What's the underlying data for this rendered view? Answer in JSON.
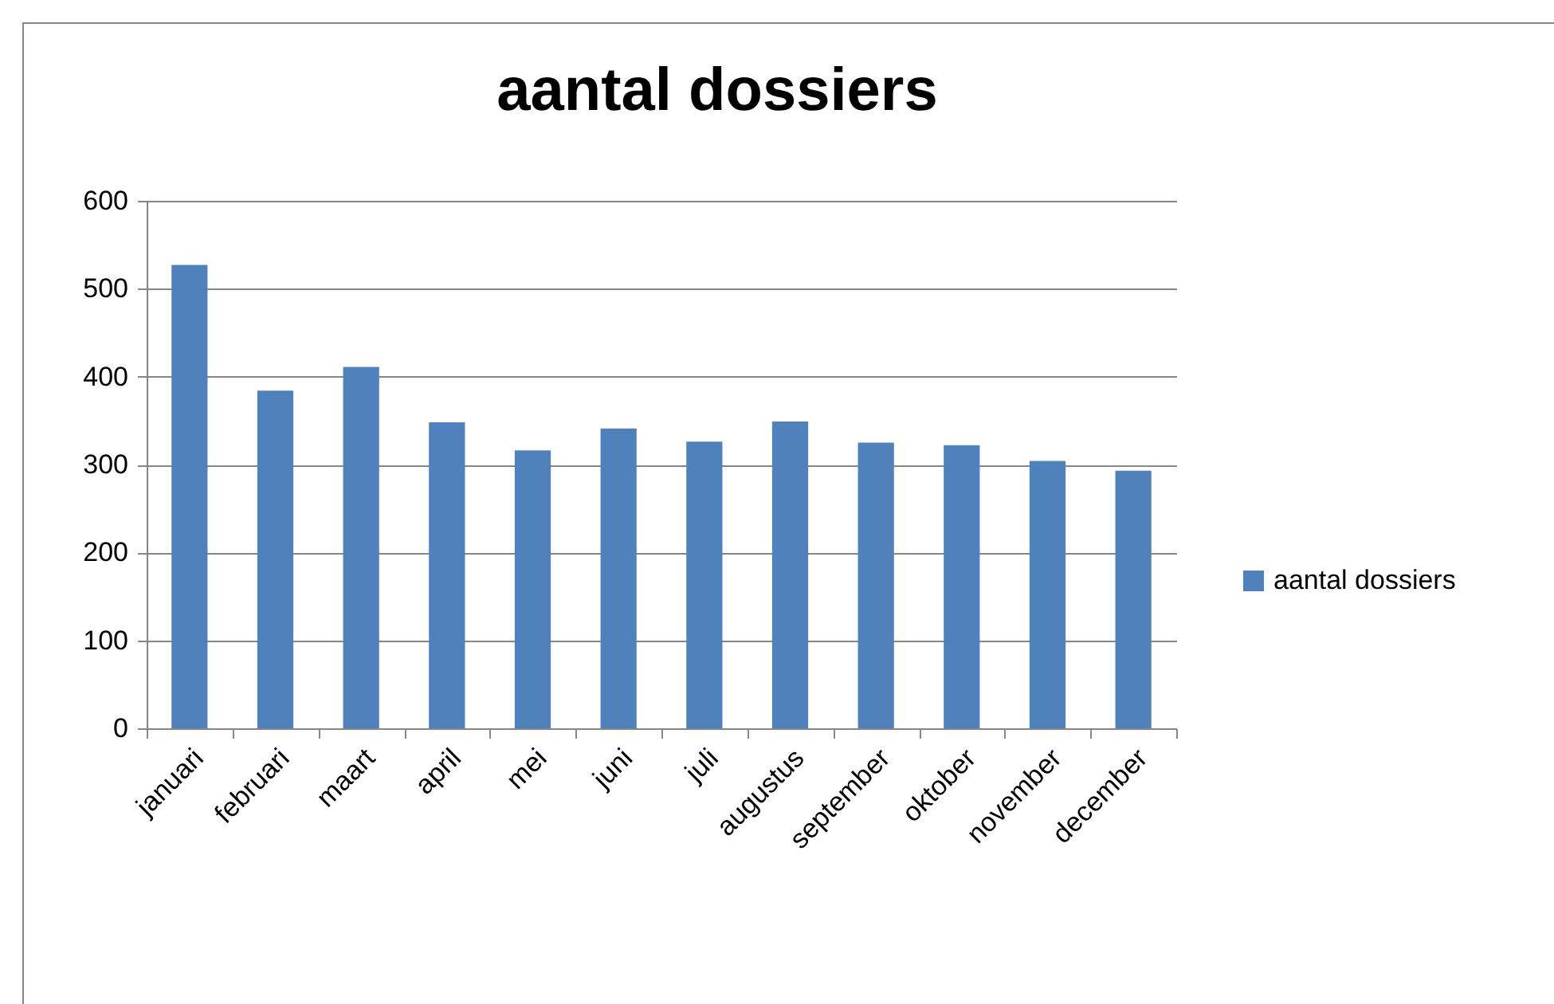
{
  "chart_data": {
    "type": "bar",
    "title": "aantal dossiers",
    "categories": [
      "januari",
      "februari",
      "maart",
      "april",
      "mei",
      "juni",
      "juli",
      "augustus",
      "september",
      "oktober",
      "november",
      "december"
    ],
    "series": [
      {
        "name": "aantal dossiers",
        "color": "#4f81bd",
        "values": [
          527,
          384,
          411,
          348,
          316,
          341,
          326,
          349,
          325,
          322,
          304,
          293
        ]
      }
    ],
    "ylim": [
      0,
      600
    ],
    "yticks": [
      0,
      100,
      200,
      300,
      400,
      500,
      600
    ],
    "grid": "y",
    "legend": "right"
  }
}
